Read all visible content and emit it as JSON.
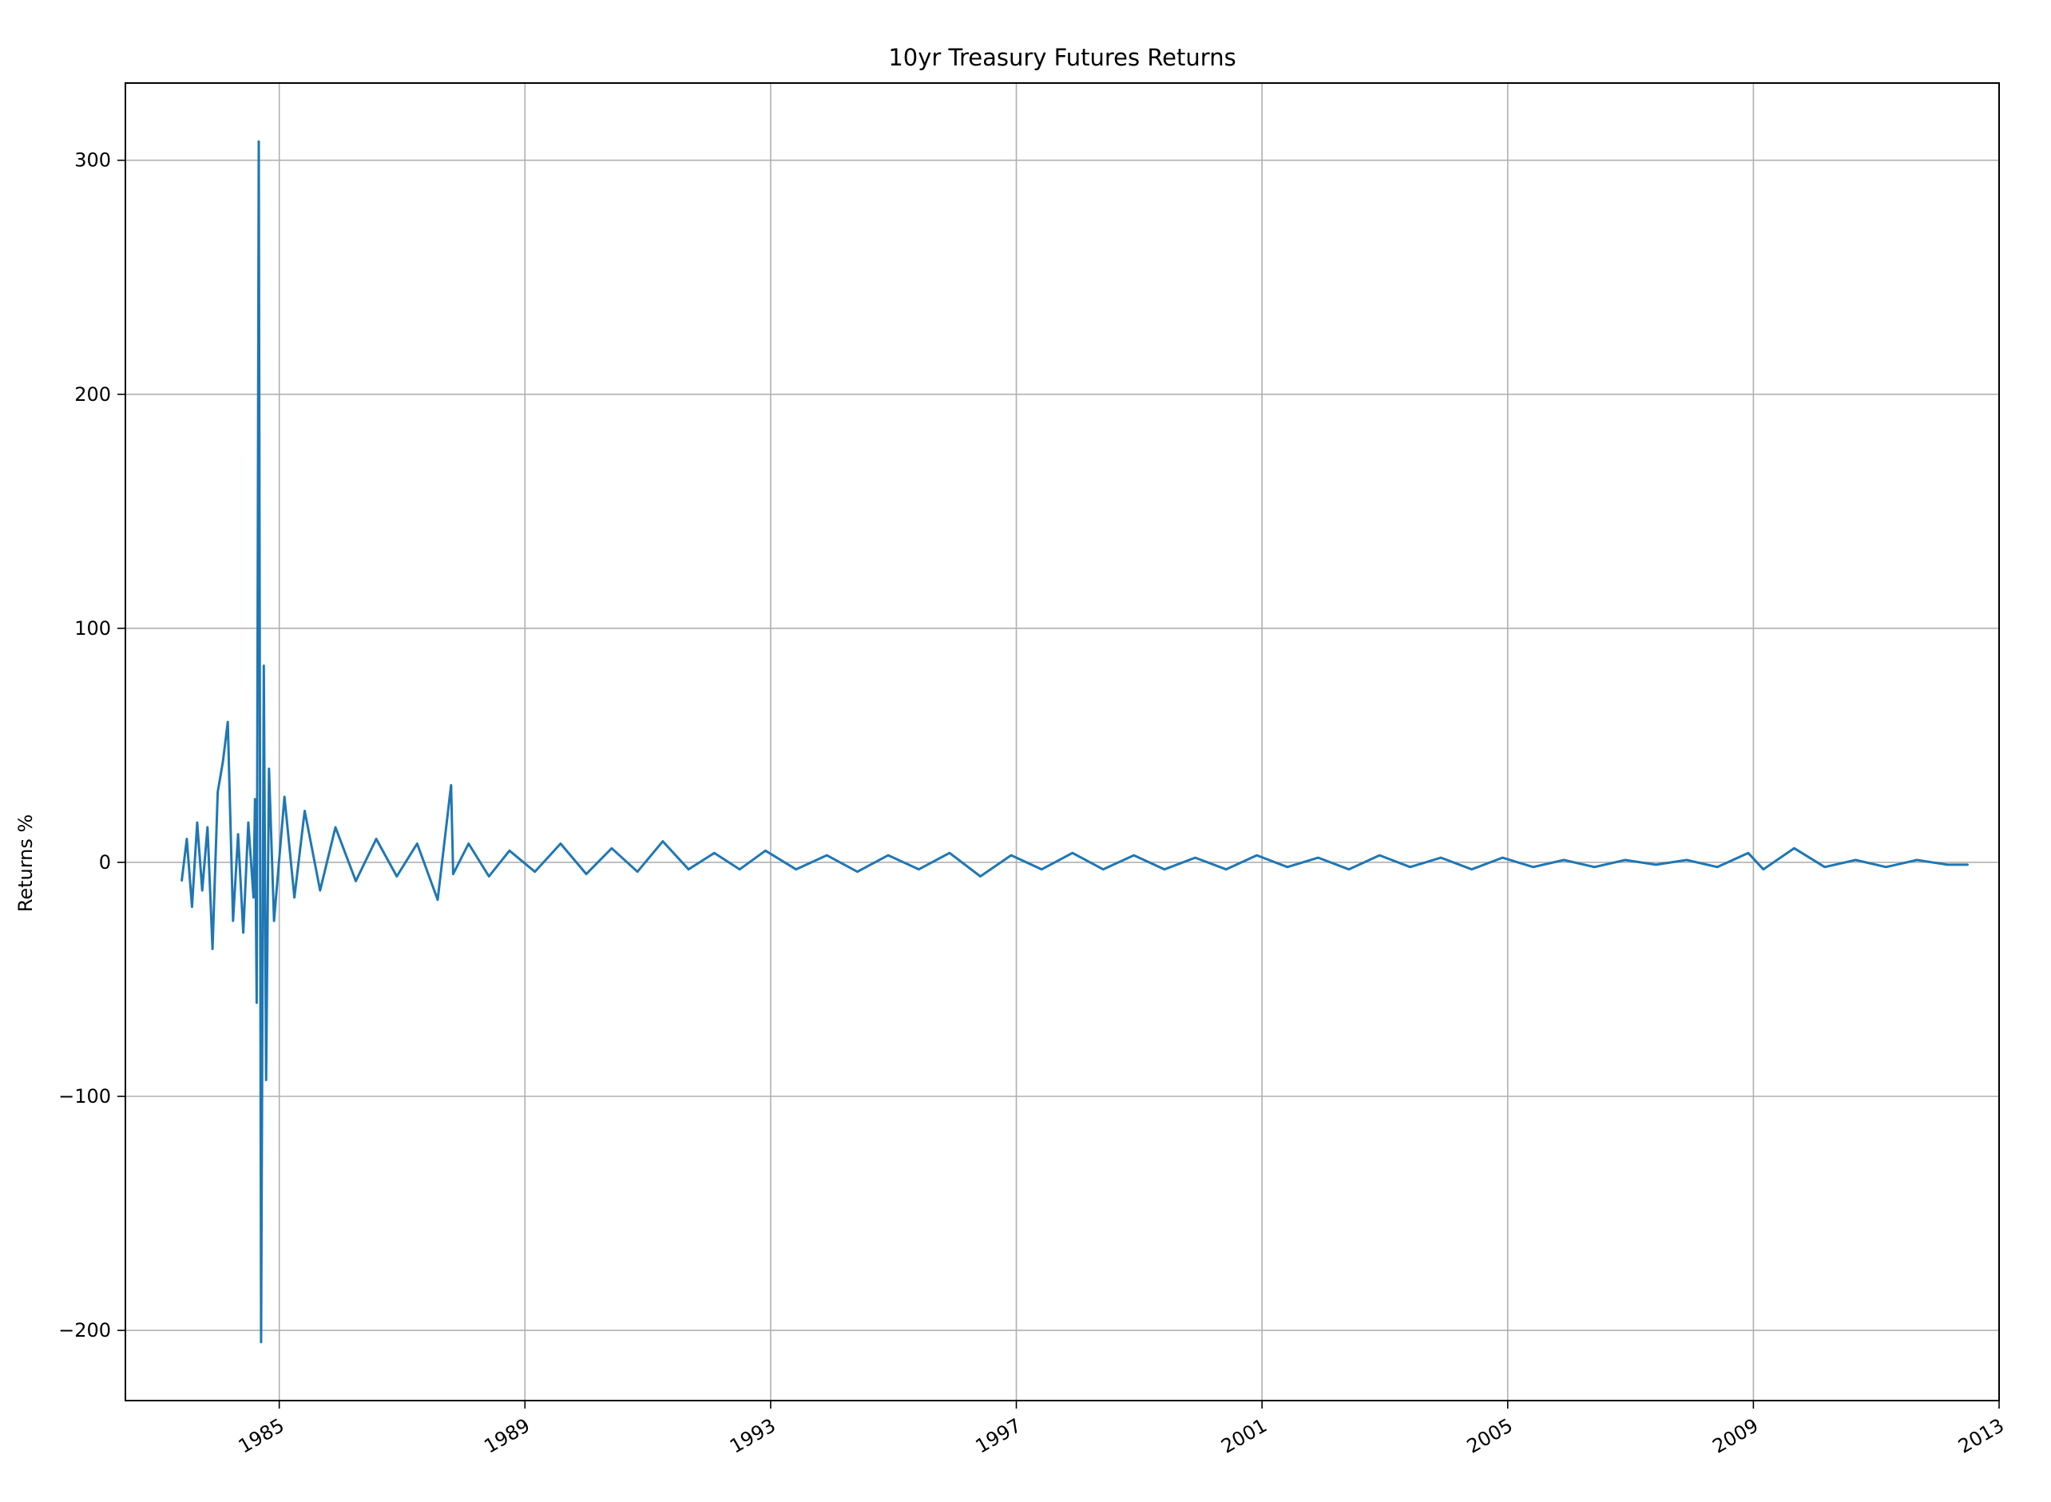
{
  "chart_data": {
    "type": "line",
    "title": "10yr Treasury Futures Returns",
    "xlabel": "",
    "ylabel": "Returns %",
    "x_axis": "date",
    "xlim": [
      "1982-07-01",
      "2013-01-01"
    ],
    "ylim": [
      -230,
      333
    ],
    "grid": true,
    "line_color": "#1f77b4",
    "x_ticks": [
      {
        "value": "1985-01-01",
        "label": "1985"
      },
      {
        "value": "1989-01-01",
        "label": "1989"
      },
      {
        "value": "1993-01-01",
        "label": "1993"
      },
      {
        "value": "1997-01-01",
        "label": "1997"
      },
      {
        "value": "2001-01-01",
        "label": "2001"
      },
      {
        "value": "2005-01-01",
        "label": "2005"
      },
      {
        "value": "2009-01-01",
        "label": "2009"
      },
      {
        "value": "2013-01-01",
        "label": "2013"
      }
    ],
    "y_ticks": [
      {
        "value": -200,
        "label": "−200"
      },
      {
        "value": -100,
        "label": "−100"
      },
      {
        "value": 0,
        "label": "0"
      },
      {
        "value": 100,
        "label": "100"
      },
      {
        "value": 200,
        "label": "200"
      },
      {
        "value": 300,
        "label": "300"
      }
    ],
    "series": [
      {
        "x": [
          "1983-06-01",
          "1983-07-01",
          "1983-08-01",
          "1983-09-01",
          "1983-10-01",
          "1983-11-01",
          "1983-12-01",
          "1984-01-01",
          "1984-02-01",
          "1984-03-01",
          "1984-04-01",
          "1984-05-01",
          "1984-06-01",
          "1984-07-01",
          "1984-08-01",
          "1984-08-10",
          "1984-08-20",
          "1984-09-01",
          "1984-09-15",
          "1984-10-01",
          "1984-10-15",
          "1984-11-01",
          "1984-12-01",
          "1985-02-01",
          "1985-04-01",
          "1985-06-01",
          "1985-09-01",
          "1985-12-01",
          "1986-04-01",
          "1986-08-01",
          "1986-12-01",
          "1987-04-01",
          "1987-08-01",
          "1987-10-20",
          "1987-11-01",
          "1988-02-01",
          "1988-06-01",
          "1988-10-01",
          "1989-03-01",
          "1989-08-01",
          "1990-01-01",
          "1990-06-01",
          "1990-11-01",
          "1991-04-01",
          "1991-09-01",
          "1992-02-01",
          "1992-07-01",
          "1992-12-01",
          "1993-06-01",
          "1993-12-01",
          "1994-06-01",
          "1994-12-01",
          "1995-06-01",
          "1995-12-01",
          "1996-06-01",
          "1996-12-01",
          "1997-06-01",
          "1997-12-01",
          "1998-06-01",
          "1998-12-01",
          "1999-06-01",
          "1999-12-01",
          "2000-06-01",
          "2000-12-01",
          "2001-06-01",
          "2001-12-01",
          "2002-06-01",
          "2002-12-01",
          "2003-06-01",
          "2003-12-01",
          "2004-06-01",
          "2004-12-01",
          "2005-06-01",
          "2005-12-01",
          "2006-06-01",
          "2006-12-01",
          "2007-06-01",
          "2007-12-01",
          "2008-06-01",
          "2008-12-01",
          "2009-03-01",
          "2009-09-01",
          "2010-03-01",
          "2010-09-01",
          "2011-03-01",
          "2011-09-01",
          "2012-03-01",
          "2012-07-01"
        ],
        "y": [
          -8,
          10,
          -19,
          17,
          -12,
          15,
          -37,
          30,
          43,
          60,
          -25,
          12,
          -30,
          17,
          -15,
          27,
          -60,
          308,
          -205,
          84,
          -93,
          40,
          -25,
          28,
          -15,
          22,
          -12,
          15,
          -8,
          10,
          -6,
          8,
          -16,
          33,
          -5,
          8,
          -6,
          5,
          -4,
          8,
          -5,
          6,
          -4,
          9,
          -3,
          4,
          -3,
          5,
          -3,
          3,
          -4,
          3,
          -3,
          4,
          -6,
          3,
          -3,
          4,
          -3,
          3,
          -3,
          2,
          -3,
          3,
          -2,
          2,
          -3,
          3,
          -2,
          2,
          -3,
          2,
          -2,
          1,
          -2,
          1,
          -1,
          1,
          -2,
          4,
          -3,
          6,
          -2,
          1,
          -2,
          1,
          -1,
          -1
        ]
      }
    ]
  }
}
